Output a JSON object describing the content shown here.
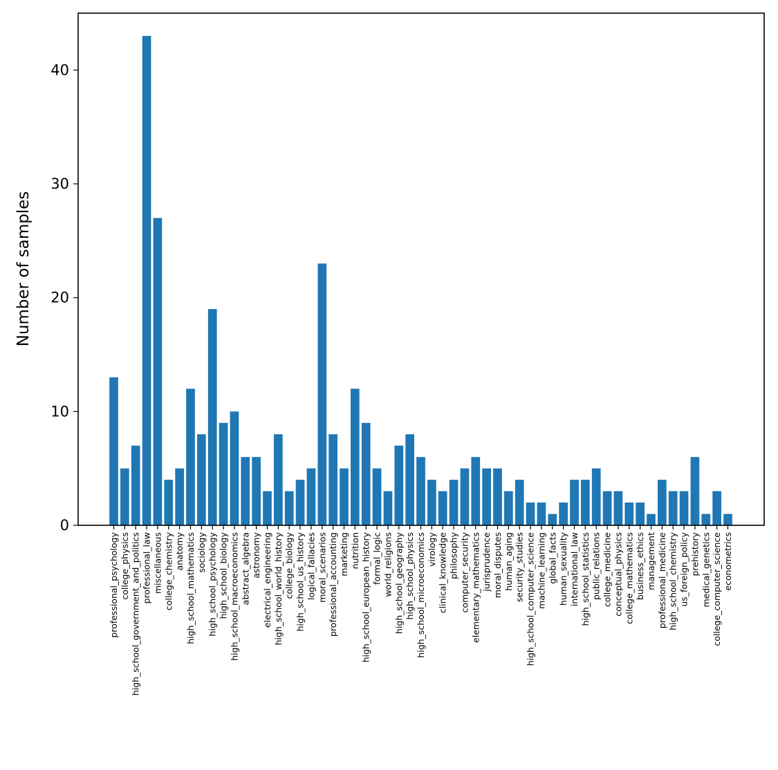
{
  "chart_data": {
    "type": "bar",
    "title": "",
    "xlabel": "",
    "ylabel": "Number of samples",
    "ylim": [
      0,
      45
    ],
    "yticks": [
      "0",
      "10",
      "20",
      "30",
      "40"
    ],
    "grid": false,
    "bar_color": "#1f77b4",
    "categories": [
      "professional_psychology",
      "college_physics",
      "high_school_government_and_politics",
      "professional_law",
      "miscellaneous",
      "college_chemistry",
      "anatomy",
      "high_school_mathematics",
      "sociology",
      "high_school_psychology",
      "high_school_biology",
      "high_school_macroeconomics",
      "abstract_algebra",
      "astronomy",
      "electrical_engineering",
      "high_school_world_history",
      "college_biology",
      "high_school_us_history",
      "logical_fallacies",
      "moral_scenarios",
      "professional_accounting",
      "marketing",
      "nutrition",
      "high_school_european_history",
      "formal_logic",
      "world_religions",
      "high_school_geography",
      "high_school_physics",
      "high_school_microeconomics",
      "virology",
      "clinical_knowledge",
      "philosophy",
      "computer_security",
      "elementary_mathematics",
      "jurisprudence",
      "moral_disputes",
      "human_aging",
      "security_studies",
      "high_school_computer_science",
      "machine_learning",
      "global_facts",
      "human_sexuality",
      "international_law",
      "high_school_statistics",
      "public_relations",
      "college_medicine",
      "conceptual_physics",
      "college_mathematics",
      "business_ethics",
      "management",
      "professional_medicine",
      "high_school_chemistry",
      "us_foreign_policy",
      "prehistory",
      "medical_genetics",
      "college_computer_science",
      "econometrics"
    ],
    "values": [
      13,
      5,
      7,
      43,
      27,
      4,
      5,
      12,
      8,
      19,
      9,
      10,
      6,
      6,
      3,
      8,
      3,
      4,
      5,
      23,
      8,
      5,
      12,
      9,
      5,
      3,
      7,
      8,
      6,
      4,
      3,
      4,
      5,
      6,
      5,
      5,
      3,
      4,
      2,
      2,
      1,
      2,
      4,
      4,
      5,
      3,
      3,
      2,
      2,
      1,
      4,
      3,
      3,
      6,
      1,
      3,
      1
    ]
  }
}
